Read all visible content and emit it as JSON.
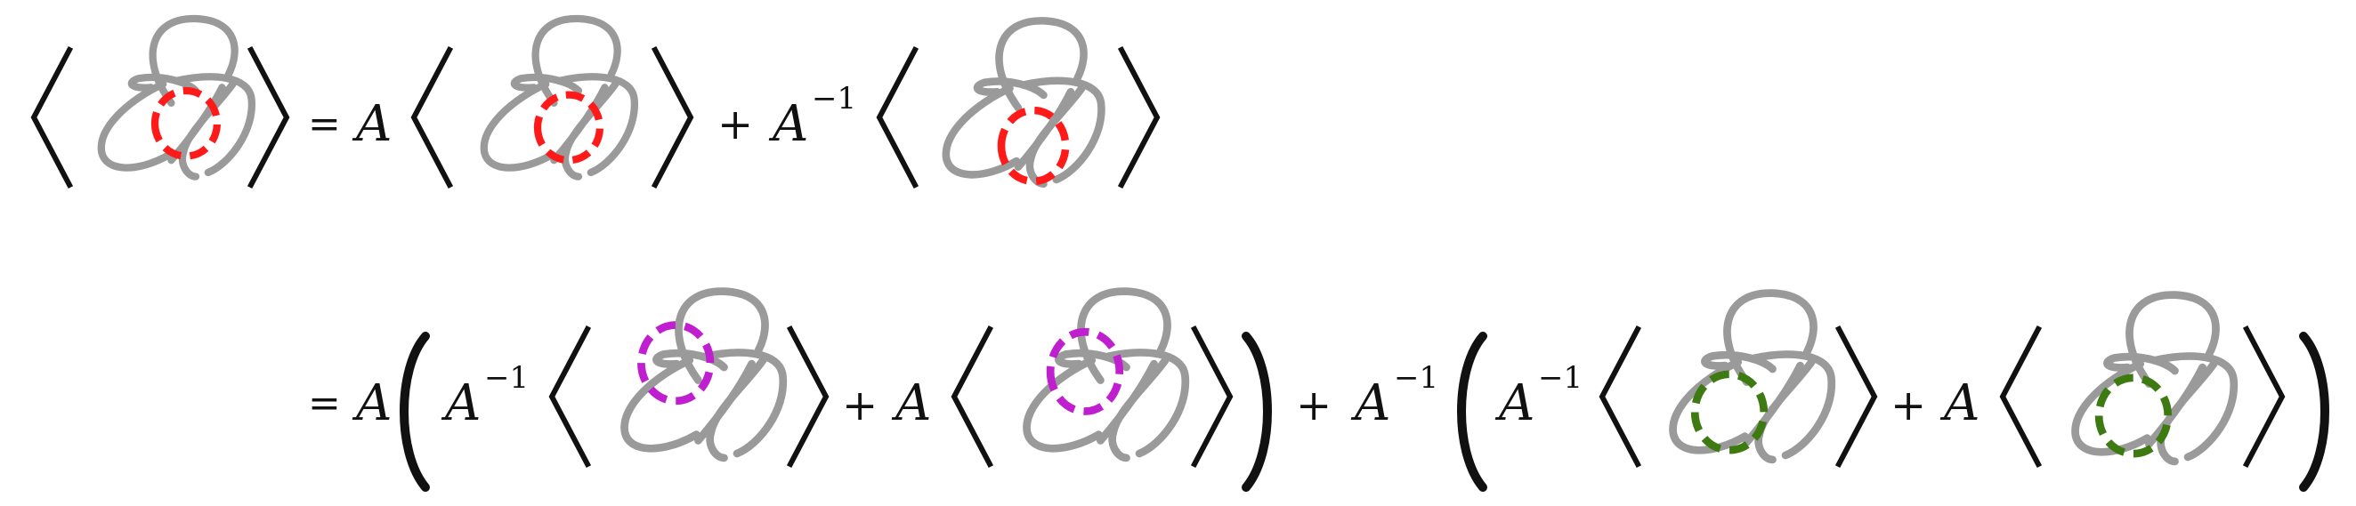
{
  "colors": {
    "knot": "#9a9a9a",
    "text": "#111111",
    "ring_red": "#ff1a1a",
    "ring_magenta": "#bf1fcf",
    "ring_green": "#3d7a12"
  },
  "line1": {
    "eq": "=",
    "coef1": "A",
    "plus": "+",
    "coef2_base": "A",
    "coef2_exp": "−1"
  },
  "line2": {
    "eq": "=",
    "outer_coef1": "A",
    "inner_coef1_base": "A",
    "inner_coef1_exp": "−1",
    "plus_a": "+",
    "inner_coef2": "A",
    "plus_b": "+",
    "outer_coef2_base": "A",
    "outer_coef2_exp": "−1",
    "inner_coef3_base": "A",
    "inner_coef3_exp": "−1",
    "plus_c": "+",
    "inner_coef4": "A"
  },
  "diagram": {
    "rings": [
      "red",
      "red",
      "red",
      "magenta",
      "magenta",
      "green",
      "green"
    ]
  }
}
